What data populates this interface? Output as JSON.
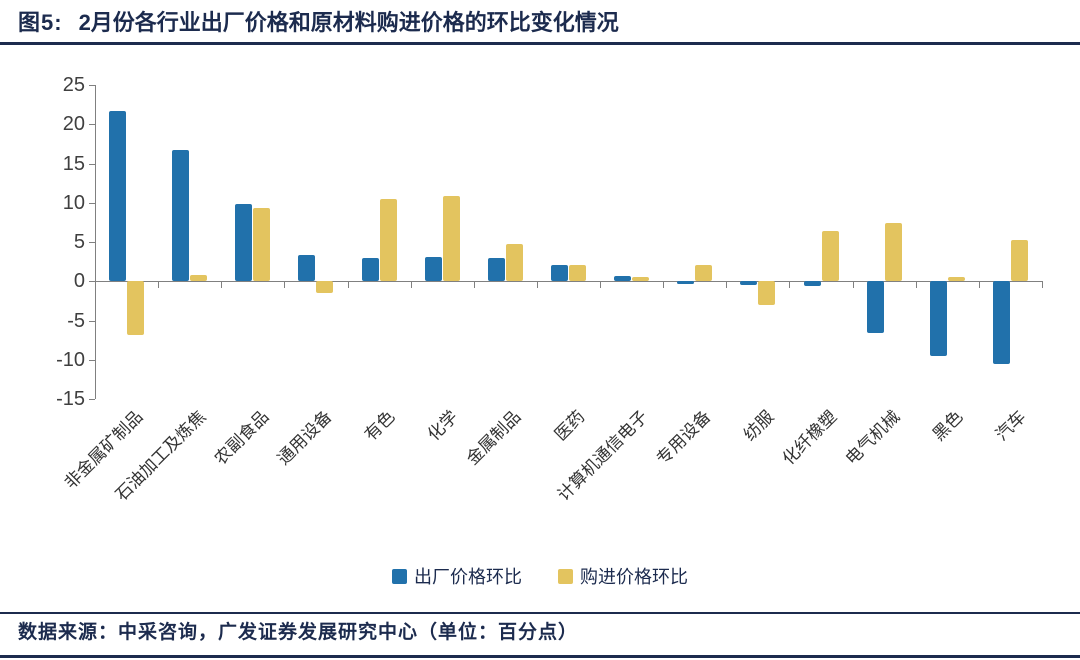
{
  "header": {
    "figure_label": "图5:",
    "title": "2月份各行业出厂价格和原材料购进价格的环比变化情况"
  },
  "chart_data": {
    "type": "bar",
    "title": "2月份各行业出厂价格和原材料购进价格的环比变化情况",
    "unit": "百分点",
    "categories": [
      "非金属矿制品",
      "石油加工及炼焦",
      "农副食品",
      "通用设备",
      "有色",
      "化学",
      "金属制品",
      "医药",
      "计算机通信电子",
      "专用设备",
      "纺服",
      "化纤橡塑",
      "电气机械",
      "黑色",
      "汽车"
    ],
    "series": [
      {
        "name": "出厂价格环比",
        "color": "#2171AB",
        "values": [
          21.7,
          16.7,
          9.8,
          3.4,
          2.9,
          3.1,
          2.9,
          2.1,
          0.7,
          -0.4,
          -0.5,
          -0.6,
          -6.6,
          -9.5,
          -10.6
        ]
      },
      {
        "name": "购进价格环比",
        "color": "#E3C45F",
        "values": [
          -6.8,
          0.8,
          9.3,
          -1.5,
          10.5,
          10.9,
          4.8,
          2.1,
          0.5,
          2.1,
          -3.0,
          6.4,
          7.4,
          0.6,
          5.3
        ]
      }
    ],
    "ylim": [
      -15,
      25
    ],
    "yticks": [
      25,
      20,
      15,
      10,
      5,
      0,
      -5,
      -10,
      -15
    ],
    "grid": false,
    "legend_position": "bottom",
    "xlabel": "",
    "ylabel": ""
  },
  "colors": {
    "navy_text": "#1c2b4e",
    "axis": "#808080",
    "producer_blue": "#2171AB",
    "purchase_yellow": "#E3C45F"
  },
  "footer": {
    "source_text": "数据来源：中采咨询，广发证券发展研究中心（单位：百分点）"
  }
}
